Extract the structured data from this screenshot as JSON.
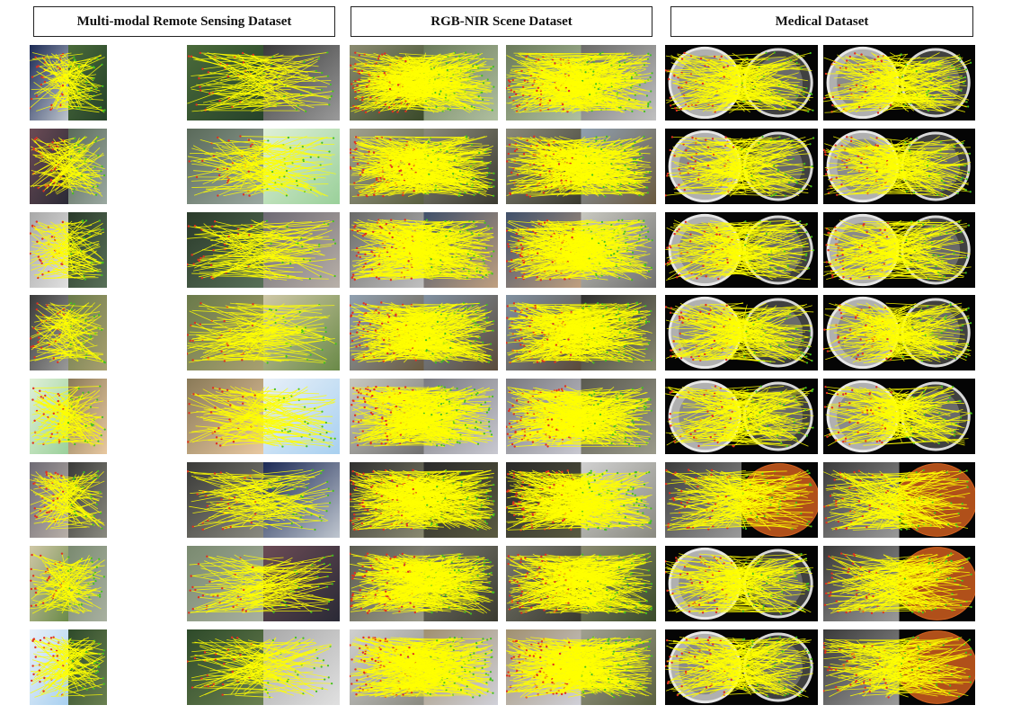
{
  "sections": [
    {
      "title": "Multi-modal Remote Sensing Dataset",
      "type": "remote"
    },
    {
      "title": "RGB-NIR Scene Dataset",
      "type": "rgbnir"
    },
    {
      "title": "Medical Dataset",
      "type": "medical"
    }
  ],
  "rows": 8,
  "colors": {
    "match_line": "#ffff00",
    "keypoint_red": "#e03020",
    "keypoint_green": "#40c020"
  }
}
